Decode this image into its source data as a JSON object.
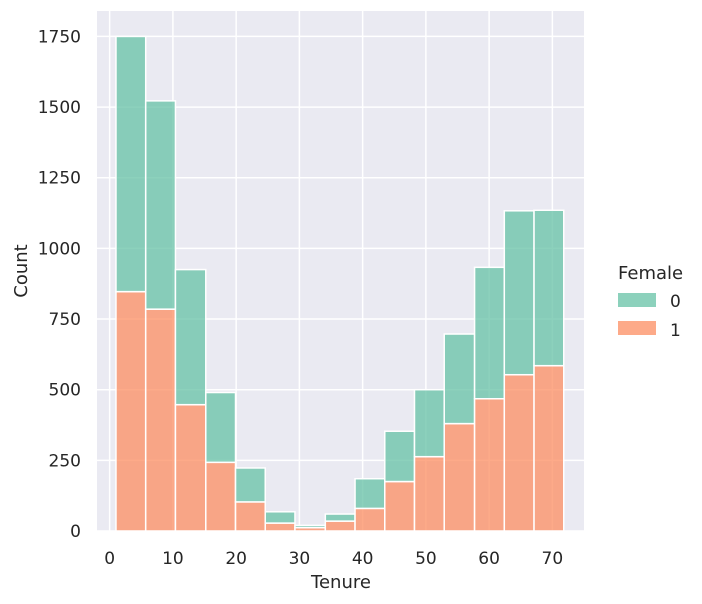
{
  "chart_data": {
    "type": "bar",
    "stacked": true,
    "xlabel": "Tenure",
    "ylabel": "Count",
    "xlim": [
      -2,
      75
    ],
    "ylim": [
      0,
      1840
    ],
    "xticks": [
      0,
      10,
      20,
      30,
      40,
      50,
      60,
      70
    ],
    "yticks": [
      0,
      250,
      500,
      750,
      1000,
      1250,
      1500,
      1750
    ],
    "grid": true,
    "legend": {
      "title": "Female",
      "placement": "right"
    },
    "bin_edges": [
      1,
      5.7,
      10.4,
      15.2,
      19.9,
      24.6,
      29.3,
      34.1,
      38.8,
      43.5,
      48.2,
      52.9,
      57.7,
      62.4,
      67.1,
      71.8
    ],
    "series": [
      {
        "name": "0",
        "color": "#66c2a5",
        "values": [
          903,
          737,
          478,
          247,
          120,
          40,
          8,
          25,
          105,
          178,
          237,
          317,
          465,
          580,
          550
        ]
      },
      {
        "name": "1",
        "color": "#fc8d62",
        "values": [
          847,
          785,
          447,
          243,
          103,
          28,
          12,
          35,
          80,
          175,
          263,
          380,
          468,
          553,
          585
        ]
      }
    ]
  }
}
